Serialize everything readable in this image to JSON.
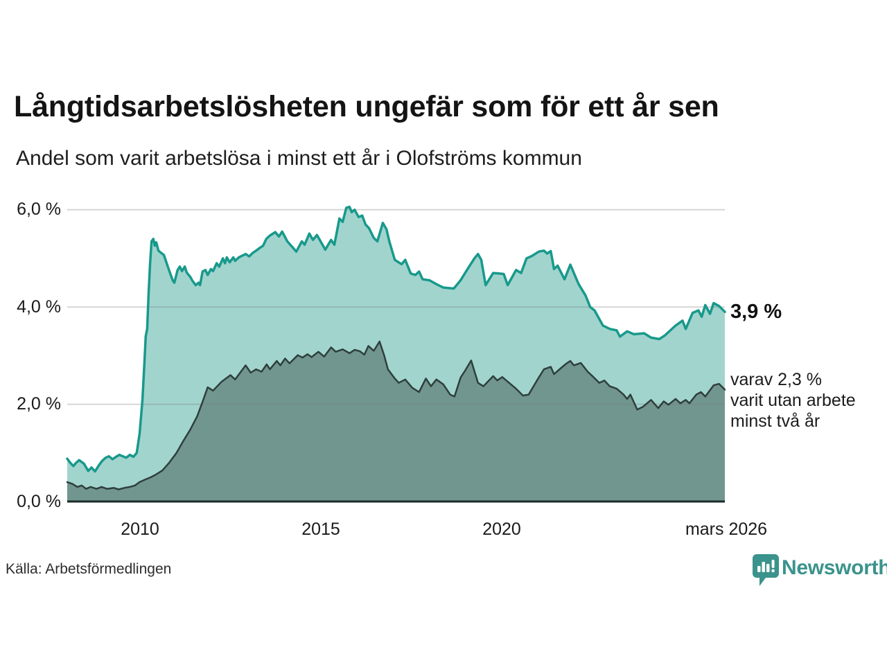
{
  "header": {
    "title": "Långtidsarbetslösheten ungefär som för ett år sen",
    "subtitle": "Andel som varit arbetslösa i minst ett år i Olofströms kommun"
  },
  "annotations": {
    "last_value": "3,9 %",
    "sub_lines": [
      "varav 2,3 %",
      "varit utan arbete",
      "minst två år"
    ]
  },
  "footer": {
    "source": "Källa: Arbetsförmedlingen",
    "brand": "Newsworthy",
    "brand_icon": "newsworthy-speech-bubble-chart-icon"
  },
  "colors": {
    "accent_teal_line": "#18998b",
    "light_teal_fill": "#a2d4ce",
    "dark_area_fill": "#719690",
    "dark_area_line": "#2e3f3c",
    "gridline": "#d7d7d7",
    "baseline": "#1c2a28",
    "brand_teal": "#3a938c",
    "text_dark": "#141414"
  },
  "chart_data": {
    "type": "area",
    "title": "Långtidsarbetslösheten ungefär som för ett år sen",
    "subtitle": "Andel som varit arbetslösa i minst ett år i Olofströms kommun",
    "grid": true,
    "x_range": [
      2008.0,
      2026.17
    ],
    "ylim": [
      0,
      6.2
    ],
    "y_ticks": [
      {
        "label": "6,0 %",
        "value": 6
      },
      {
        "label": "4,0 %",
        "value": 4
      },
      {
        "label": "2,0 %",
        "value": 2
      },
      {
        "label": "0,0 %",
        "value": 0
      }
    ],
    "x_ticks": [
      {
        "label": "2010",
        "year": 2010.0
      },
      {
        "label": "2015",
        "year": 2015.0
      },
      {
        "label": "2020",
        "year": 2020.0
      },
      {
        "label": "mars 2026",
        "year": 2026.17
      }
    ],
    "series": [
      {
        "name": "arbetslösa minst ett år",
        "end_label": "3,9 %",
        "end_value": 3.9,
        "color": "#18998b",
        "fill": "#a2d4ce",
        "points": [
          [
            2008.0,
            0.88
          ],
          [
            2008.08,
            0.8
          ],
          [
            2008.17,
            0.73
          ],
          [
            2008.25,
            0.8
          ],
          [
            2008.33,
            0.85
          ],
          [
            2008.46,
            0.78
          ],
          [
            2008.58,
            0.63
          ],
          [
            2008.67,
            0.7
          ],
          [
            2008.77,
            0.62
          ],
          [
            2008.87,
            0.74
          ],
          [
            2008.96,
            0.83
          ],
          [
            2009.06,
            0.9
          ],
          [
            2009.15,
            0.93
          ],
          [
            2009.25,
            0.87
          ],
          [
            2009.35,
            0.92
          ],
          [
            2009.44,
            0.96
          ],
          [
            2009.54,
            0.93
          ],
          [
            2009.63,
            0.9
          ],
          [
            2009.73,
            0.96
          ],
          [
            2009.83,
            0.92
          ],
          [
            2009.92,
            1.0
          ],
          [
            2010.0,
            1.4
          ],
          [
            2010.08,
            2.1
          ],
          [
            2010.13,
            2.8
          ],
          [
            2010.17,
            3.4
          ],
          [
            2010.21,
            3.55
          ],
          [
            2010.25,
            4.3
          ],
          [
            2010.29,
            4.9
          ],
          [
            2010.33,
            5.35
          ],
          [
            2010.38,
            5.4
          ],
          [
            2010.42,
            5.26
          ],
          [
            2010.46,
            5.33
          ],
          [
            2010.52,
            5.16
          ],
          [
            2010.6,
            5.11
          ],
          [
            2010.67,
            5.07
          ],
          [
            2010.77,
            4.85
          ],
          [
            2010.86,
            4.66
          ],
          [
            2010.92,
            4.54
          ],
          [
            2010.96,
            4.5
          ],
          [
            2011.05,
            4.76
          ],
          [
            2011.11,
            4.83
          ],
          [
            2011.17,
            4.74
          ],
          [
            2011.25,
            4.83
          ],
          [
            2011.3,
            4.71
          ],
          [
            2011.4,
            4.62
          ],
          [
            2011.46,
            4.54
          ],
          [
            2011.55,
            4.45
          ],
          [
            2011.63,
            4.5
          ],
          [
            2011.67,
            4.45
          ],
          [
            2011.74,
            4.73
          ],
          [
            2011.82,
            4.76
          ],
          [
            2011.88,
            4.66
          ],
          [
            2011.97,
            4.78
          ],
          [
            2012.03,
            4.74
          ],
          [
            2012.13,
            4.9
          ],
          [
            2012.2,
            4.83
          ],
          [
            2012.3,
            5.0
          ],
          [
            2012.36,
            4.9
          ],
          [
            2012.41,
            5.02
          ],
          [
            2012.49,
            4.92
          ],
          [
            2012.59,
            5.02
          ],
          [
            2012.64,
            4.95
          ],
          [
            2012.74,
            5.02
          ],
          [
            2012.93,
            5.09
          ],
          [
            2013.03,
            5.04
          ],
          [
            2013.12,
            5.11
          ],
          [
            2013.22,
            5.16
          ],
          [
            2013.31,
            5.21
          ],
          [
            2013.41,
            5.26
          ],
          [
            2013.5,
            5.4
          ],
          [
            2013.6,
            5.47
          ],
          [
            2013.75,
            5.54
          ],
          [
            2013.85,
            5.45
          ],
          [
            2013.94,
            5.55
          ],
          [
            2014.08,
            5.35
          ],
          [
            2014.33,
            5.14
          ],
          [
            2014.48,
            5.35
          ],
          [
            2014.56,
            5.28
          ],
          [
            2014.69,
            5.51
          ],
          [
            2014.79,
            5.38
          ],
          [
            2014.9,
            5.48
          ],
          [
            2015.13,
            5.18
          ],
          [
            2015.29,
            5.38
          ],
          [
            2015.38,
            5.28
          ],
          [
            2015.52,
            5.82
          ],
          [
            2015.61,
            5.75
          ],
          [
            2015.71,
            6.04
          ],
          [
            2015.8,
            6.06
          ],
          [
            2015.86,
            5.95
          ],
          [
            2015.94,
            6.0
          ],
          [
            2016.05,
            5.85
          ],
          [
            2016.15,
            5.88
          ],
          [
            2016.24,
            5.7
          ],
          [
            2016.34,
            5.62
          ],
          [
            2016.47,
            5.42
          ],
          [
            2016.57,
            5.35
          ],
          [
            2016.72,
            5.73
          ],
          [
            2016.82,
            5.6
          ],
          [
            2016.9,
            5.35
          ],
          [
            2017.05,
            4.97
          ],
          [
            2017.24,
            4.88
          ],
          [
            2017.34,
            4.97
          ],
          [
            2017.49,
            4.69
          ],
          [
            2017.62,
            4.66
          ],
          [
            2017.72,
            4.73
          ],
          [
            2017.82,
            4.57
          ],
          [
            2018.01,
            4.55
          ],
          [
            2018.2,
            4.47
          ],
          [
            2018.39,
            4.4
          ],
          [
            2018.68,
            4.38
          ],
          [
            2018.87,
            4.55
          ],
          [
            2019.06,
            4.78
          ],
          [
            2019.25,
            5.0
          ],
          [
            2019.35,
            5.09
          ],
          [
            2019.44,
            4.97
          ],
          [
            2019.56,
            4.45
          ],
          [
            2019.77,
            4.7
          ],
          [
            2019.92,
            4.69
          ],
          [
            2020.06,
            4.68
          ],
          [
            2020.17,
            4.45
          ],
          [
            2020.4,
            4.76
          ],
          [
            2020.54,
            4.7
          ],
          [
            2020.69,
            5.0
          ],
          [
            2020.84,
            5.05
          ],
          [
            2021.03,
            5.14
          ],
          [
            2021.17,
            5.16
          ],
          [
            2021.26,
            5.1
          ],
          [
            2021.36,
            5.15
          ],
          [
            2021.45,
            4.78
          ],
          [
            2021.55,
            4.85
          ],
          [
            2021.74,
            4.57
          ],
          [
            2021.9,
            4.87
          ],
          [
            2022.13,
            4.47
          ],
          [
            2022.32,
            4.24
          ],
          [
            2022.45,
            4.0
          ],
          [
            2022.57,
            3.93
          ],
          [
            2022.8,
            3.62
          ],
          [
            2022.99,
            3.55
          ],
          [
            2023.18,
            3.52
          ],
          [
            2023.27,
            3.39
          ],
          [
            2023.47,
            3.5
          ],
          [
            2023.66,
            3.44
          ],
          [
            2023.94,
            3.46
          ],
          [
            2024.13,
            3.37
          ],
          [
            2024.36,
            3.34
          ],
          [
            2024.52,
            3.42
          ],
          [
            2024.81,
            3.62
          ],
          [
            2025.0,
            3.72
          ],
          [
            2025.09,
            3.55
          ],
          [
            2025.28,
            3.88
          ],
          [
            2025.44,
            3.93
          ],
          [
            2025.53,
            3.8
          ],
          [
            2025.63,
            4.04
          ],
          [
            2025.76,
            3.86
          ],
          [
            2025.86,
            4.08
          ],
          [
            2026.01,
            4.02
          ],
          [
            2026.17,
            3.9
          ]
        ]
      },
      {
        "name": "varav utan arbete minst två år",
        "end_label": "varav 2,3 % varit utan arbete minst två år",
        "end_value": 2.3,
        "color": "#2e3f3c",
        "fill": "#719690",
        "points": [
          [
            2008.0,
            0.4
          ],
          [
            2008.15,
            0.36
          ],
          [
            2008.28,
            0.3
          ],
          [
            2008.4,
            0.33
          ],
          [
            2008.52,
            0.26
          ],
          [
            2008.65,
            0.3
          ],
          [
            2008.81,
            0.26
          ],
          [
            2008.95,
            0.3
          ],
          [
            2009.1,
            0.26
          ],
          [
            2009.29,
            0.28
          ],
          [
            2009.42,
            0.25
          ],
          [
            2009.58,
            0.28
          ],
          [
            2009.73,
            0.3
          ],
          [
            2009.87,
            0.33
          ],
          [
            2010.0,
            0.4
          ],
          [
            2010.15,
            0.45
          ],
          [
            2010.31,
            0.5
          ],
          [
            2010.44,
            0.55
          ],
          [
            2010.63,
            0.64
          ],
          [
            2010.82,
            0.8
          ],
          [
            2011.02,
            1.0
          ],
          [
            2011.21,
            1.25
          ],
          [
            2011.4,
            1.48
          ],
          [
            2011.59,
            1.75
          ],
          [
            2011.74,
            2.05
          ],
          [
            2011.88,
            2.35
          ],
          [
            2012.03,
            2.28
          ],
          [
            2012.26,
            2.46
          ],
          [
            2012.51,
            2.6
          ],
          [
            2012.64,
            2.51
          ],
          [
            2012.93,
            2.8
          ],
          [
            2013.07,
            2.65
          ],
          [
            2013.22,
            2.72
          ],
          [
            2013.37,
            2.67
          ],
          [
            2013.51,
            2.82
          ],
          [
            2013.6,
            2.72
          ],
          [
            2013.79,
            2.89
          ],
          [
            2013.89,
            2.8
          ],
          [
            2014.02,
            2.94
          ],
          [
            2014.14,
            2.84
          ],
          [
            2014.37,
            3.01
          ],
          [
            2014.5,
            2.96
          ],
          [
            2014.64,
            3.03
          ],
          [
            2014.75,
            2.97
          ],
          [
            2014.94,
            3.08
          ],
          [
            2015.1,
            2.98
          ],
          [
            2015.29,
            3.17
          ],
          [
            2015.42,
            3.08
          ],
          [
            2015.61,
            3.13
          ],
          [
            2015.8,
            3.05
          ],
          [
            2015.94,
            3.12
          ],
          [
            2016.09,
            3.09
          ],
          [
            2016.21,
            3.02
          ],
          [
            2016.32,
            3.2
          ],
          [
            2016.47,
            3.1
          ],
          [
            2016.63,
            3.29
          ],
          [
            2016.76,
            3.0
          ],
          [
            2016.86,
            2.72
          ],
          [
            2017.05,
            2.53
          ],
          [
            2017.16,
            2.44
          ],
          [
            2017.34,
            2.51
          ],
          [
            2017.53,
            2.34
          ],
          [
            2017.72,
            2.25
          ],
          [
            2017.91,
            2.53
          ],
          [
            2018.05,
            2.37
          ],
          [
            2018.2,
            2.51
          ],
          [
            2018.39,
            2.41
          ],
          [
            2018.58,
            2.2
          ],
          [
            2018.7,
            2.16
          ],
          [
            2018.87,
            2.55
          ],
          [
            2019.0,
            2.7
          ],
          [
            2019.16,
            2.9
          ],
          [
            2019.35,
            2.44
          ],
          [
            2019.5,
            2.37
          ],
          [
            2019.77,
            2.58
          ],
          [
            2019.88,
            2.49
          ],
          [
            2020.02,
            2.56
          ],
          [
            2020.21,
            2.44
          ],
          [
            2020.4,
            2.32
          ],
          [
            2020.59,
            2.18
          ],
          [
            2020.75,
            2.2
          ],
          [
            2020.98,
            2.49
          ],
          [
            2021.17,
            2.72
          ],
          [
            2021.36,
            2.77
          ],
          [
            2021.45,
            2.62
          ],
          [
            2021.65,
            2.75
          ],
          [
            2021.78,
            2.83
          ],
          [
            2021.9,
            2.89
          ],
          [
            2022.0,
            2.8
          ],
          [
            2022.19,
            2.85
          ],
          [
            2022.38,
            2.67
          ],
          [
            2022.51,
            2.58
          ],
          [
            2022.7,
            2.44
          ],
          [
            2022.84,
            2.49
          ],
          [
            2022.99,
            2.37
          ],
          [
            2023.18,
            2.32
          ],
          [
            2023.37,
            2.2
          ],
          [
            2023.47,
            2.11
          ],
          [
            2023.56,
            2.2
          ],
          [
            2023.75,
            1.89
          ],
          [
            2023.91,
            1.95
          ],
          [
            2024.13,
            2.09
          ],
          [
            2024.33,
            1.92
          ],
          [
            2024.48,
            2.06
          ],
          [
            2024.61,
            1.99
          ],
          [
            2024.81,
            2.11
          ],
          [
            2024.94,
            2.02
          ],
          [
            2025.09,
            2.09
          ],
          [
            2025.19,
            2.02
          ],
          [
            2025.38,
            2.2
          ],
          [
            2025.51,
            2.25
          ],
          [
            2025.63,
            2.16
          ],
          [
            2025.86,
            2.39
          ],
          [
            2026.01,
            2.42
          ],
          [
            2026.17,
            2.3
          ]
        ]
      }
    ]
  }
}
